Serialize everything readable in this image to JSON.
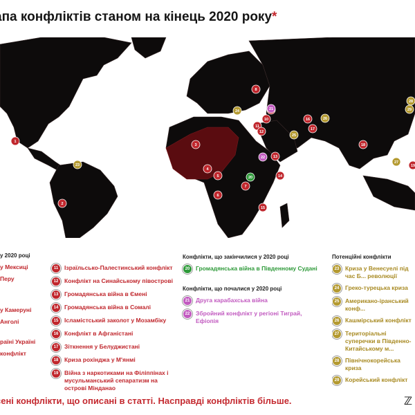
{
  "title": "апа конфліктів станом на кінець 2020 року",
  "title_asterisk": "*",
  "colors": {
    "red": "#c0272d",
    "green": "#2f9a3a",
    "purple": "#c25bc0",
    "gold": "#b49a31",
    "map": "#0d0b0b"
  },
  "legend": {
    "ongoing_header": "у 2020 році",
    "ongoing_left": [
      {
        "label": "у Мексиці"
      },
      {
        "label": "Перу"
      },
      {
        "label": "у Камеруні"
      },
      {
        "label": "Анголі"
      },
      {
        "label": "раїні Україні"
      },
      {
        "label": "конфлікт"
      }
    ],
    "ongoing_right": [
      {
        "num": "11",
        "label": "Ізраїльсько-Палестинський конфлікт"
      },
      {
        "num": "12",
        "label": "Конфлікт на Синайському півострові"
      },
      {
        "num": "13",
        "label": "Громадянська війна в Ємені"
      },
      {
        "num": "14",
        "label": "Громадянська війна в Сомалі"
      },
      {
        "num": "15",
        "label": "Ісламістський заколот у Мозамбіку"
      },
      {
        "num": "16",
        "label": "Конфлікт в Афганістані"
      },
      {
        "num": "17",
        "label": "Зіткнення у Белуджистані"
      },
      {
        "num": "18",
        "label": "Криза рохінджа у М'янмі"
      },
      {
        "num": "19",
        "label": "Війна з наркотиками на Філіппінах і мусульманський сепаратизм на острові Мінданао"
      }
    ],
    "ended_header": "Конфлікти, що закінчилися у 2020 році",
    "ended": [
      {
        "num": "20",
        "label": "Громадянська війна в Південному Судані"
      }
    ],
    "started_header": "Конфлікти, що почалися у 2020 році",
    "started": [
      {
        "num": "21",
        "label": "Друга карабахська війна"
      },
      {
        "num": "22",
        "label": "Збройний конфлікт у регіоні Тиграй, Ефіопія"
      }
    ],
    "potential_header": "Потенційні конфлікти",
    "potential": [
      {
        "num": "23",
        "label": "Криза у Венесуелі під час Б... революції"
      },
      {
        "num": "24",
        "label": "Греко-турецька криза"
      },
      {
        "num": "25",
        "label": "Американо-іранський конф..."
      },
      {
        "num": "26",
        "label": "Кашмірський конфлікт"
      },
      {
        "num": "27",
        "label": "Територіальні суперечки в Південно-Китайському м..."
      },
      {
        "num": "28",
        "label": "Північнокорейська криза"
      },
      {
        "num": "29",
        "label": "Корейський конфлікт"
      }
    ]
  },
  "map_pins": [
    {
      "num": "1",
      "color": "red"
    },
    {
      "num": "2",
      "color": "red"
    },
    {
      "num": "3",
      "color": "red"
    },
    {
      "num": "4",
      "color": "red"
    },
    {
      "num": "5",
      "color": "red"
    },
    {
      "num": "6",
      "color": "red"
    },
    {
      "num": "7",
      "color": "red"
    },
    {
      "num": "8",
      "color": "red"
    },
    {
      "num": "9",
      "color": "red"
    },
    {
      "num": "10",
      "color": "red"
    },
    {
      "num": "11",
      "color": "red"
    },
    {
      "num": "12",
      "color": "red"
    },
    {
      "num": "13",
      "color": "red"
    },
    {
      "num": "14",
      "color": "red"
    },
    {
      "num": "15",
      "color": "red"
    },
    {
      "num": "16",
      "color": "red"
    },
    {
      "num": "17",
      "color": "red"
    },
    {
      "num": "18",
      "color": "red"
    },
    {
      "num": "19",
      "color": "red"
    },
    {
      "num": "20",
      "color": "green"
    },
    {
      "num": "21",
      "color": "purple"
    },
    {
      "num": "22",
      "color": "purple"
    },
    {
      "num": "23",
      "color": "gold"
    },
    {
      "num": "24",
      "color": "gold"
    },
    {
      "num": "25",
      "color": "gold"
    },
    {
      "num": "26",
      "color": "gold"
    },
    {
      "num": "27",
      "color": "gold"
    },
    {
      "num": "28",
      "color": "gold"
    },
    {
      "num": "29",
      "color": "gold"
    }
  ],
  "footer": "сені конфлікти, що описані в статті. Насправді конфліктів більше."
}
